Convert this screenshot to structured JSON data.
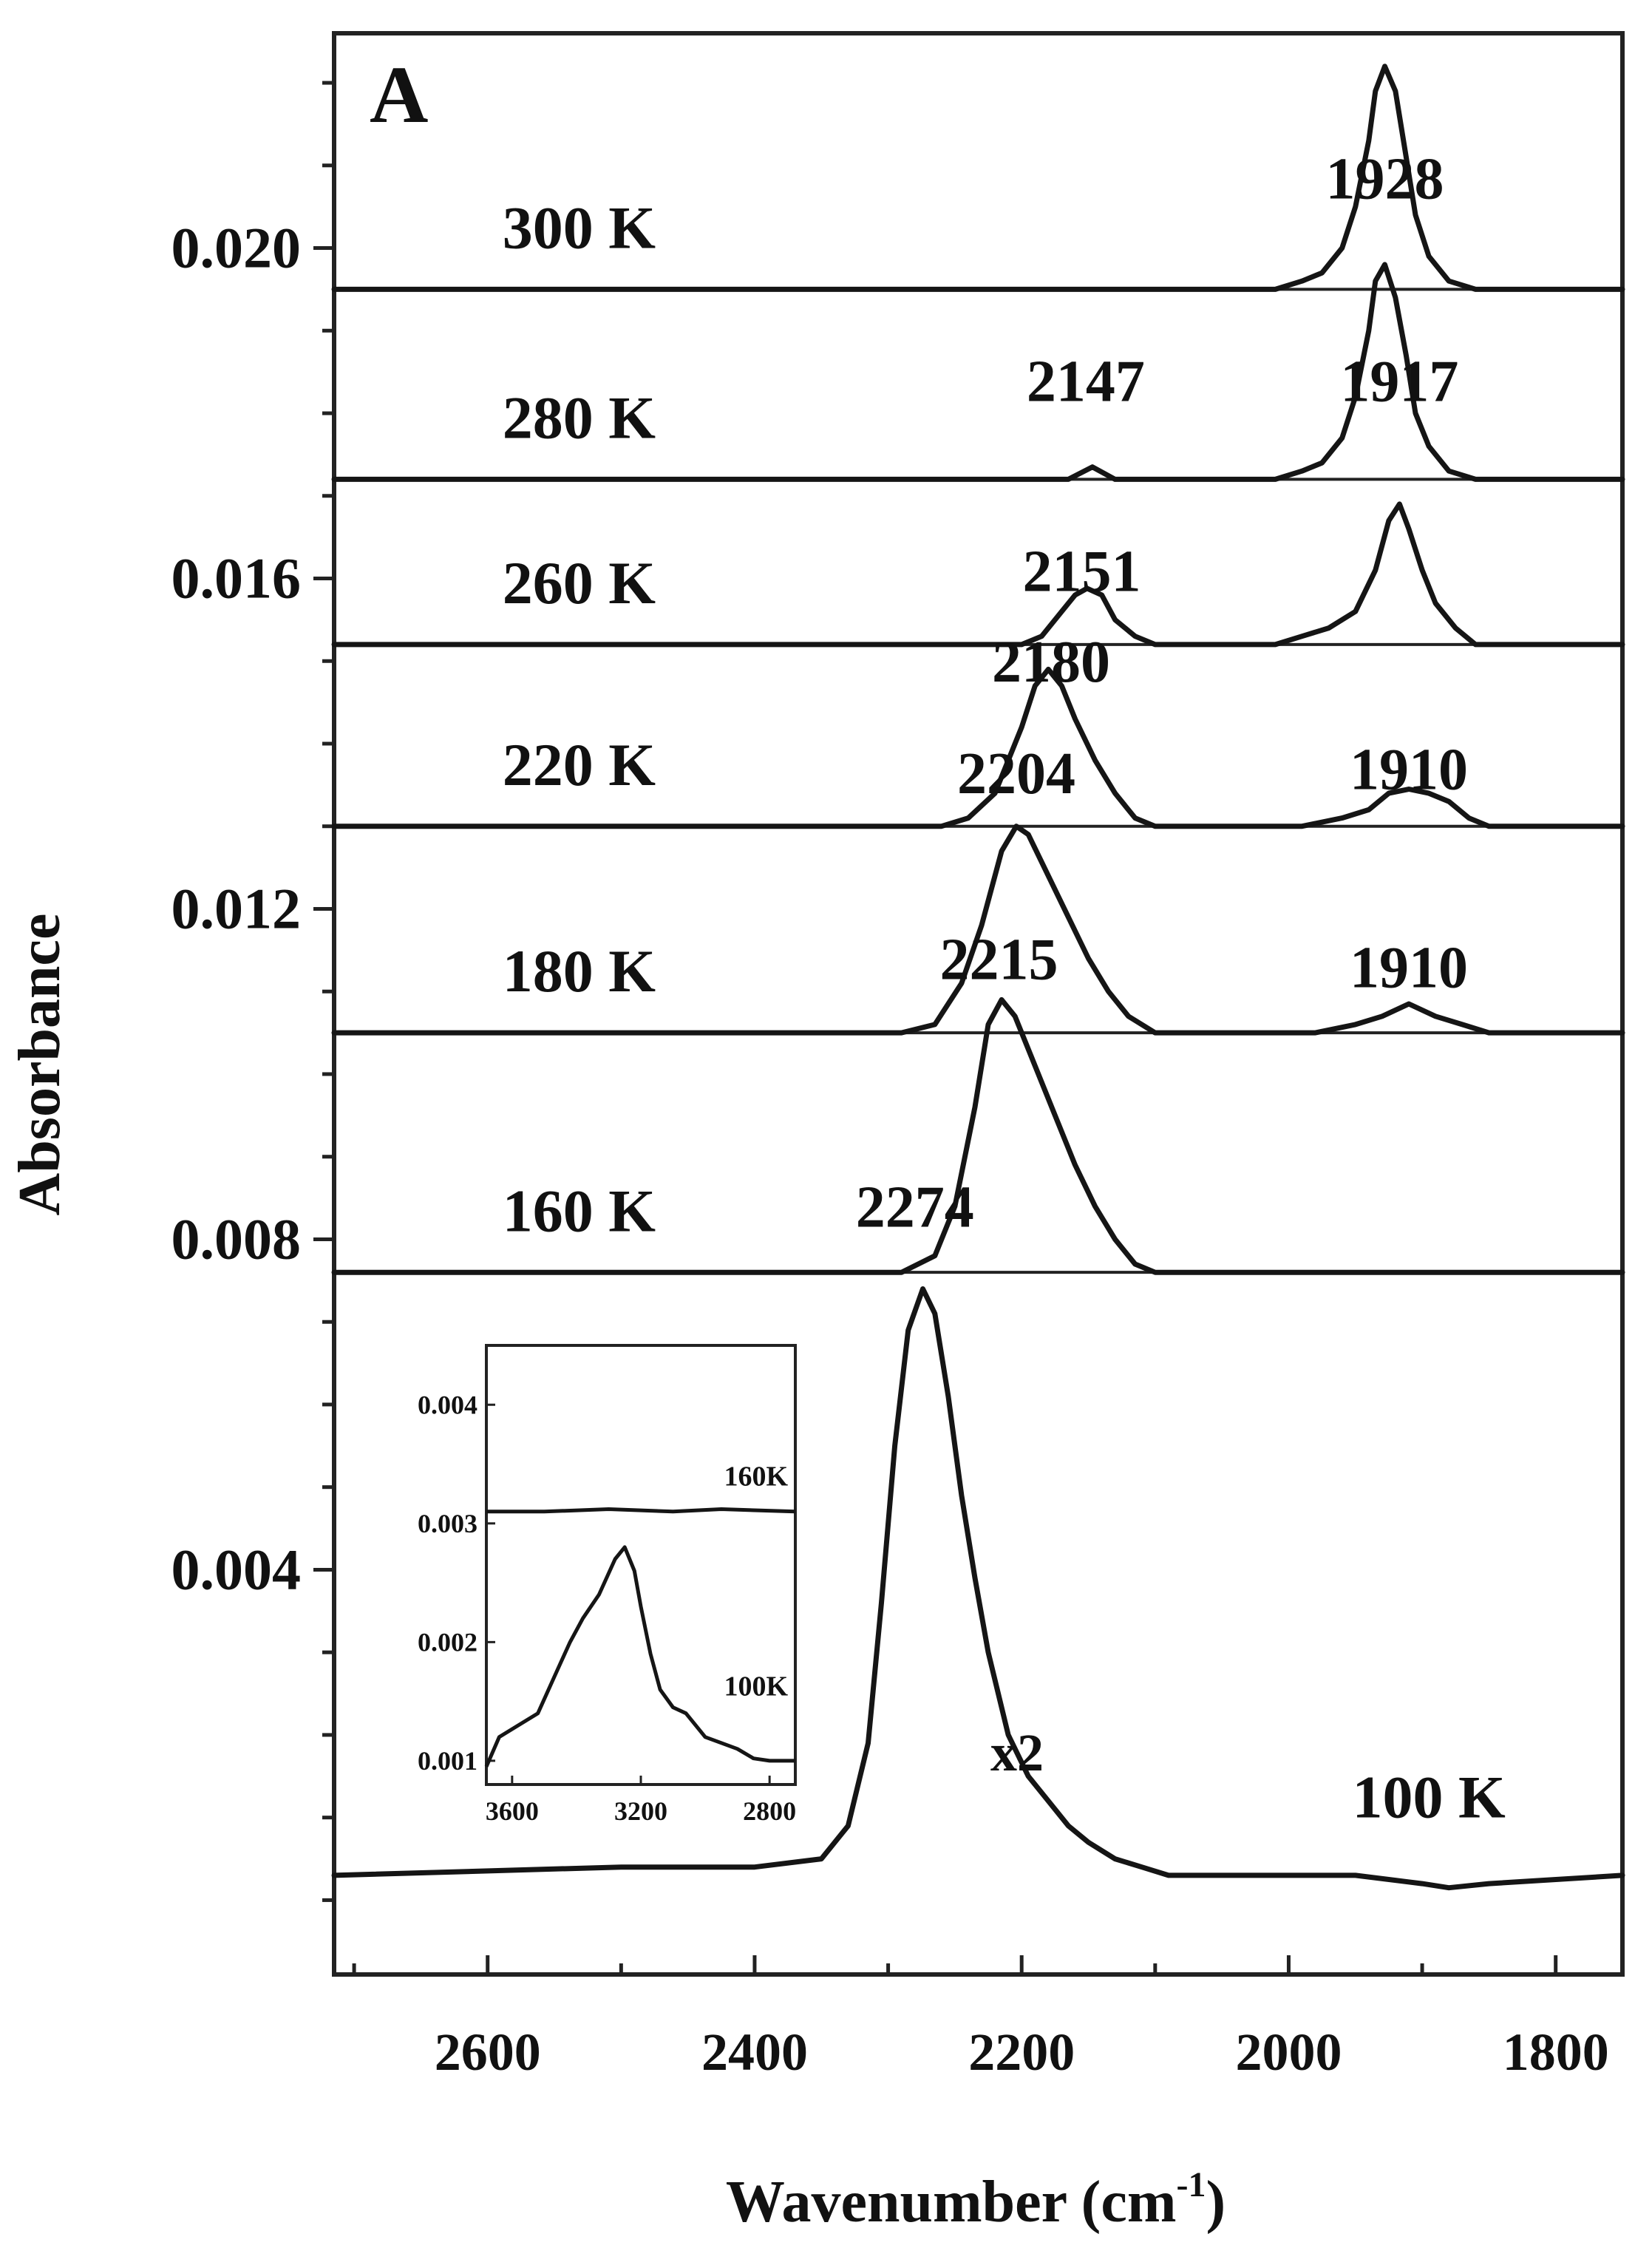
{
  "chart_data": {
    "type": "line",
    "panel_label": "A",
    "xlabel": "Wavenumber (cm-1)",
    "xlabel_main": "Wavenumber (cm",
    "xlabel_sup": "-1",
    "xlabel_close": ")",
    "ylabel": "Absorbance",
    "xlim": [
      2715,
      1750
    ],
    "ylim": [
      -0.0009,
      0.0226
    ],
    "x_reversed": true,
    "x_ticks": [
      2600,
      2400,
      2200,
      2000,
      1800
    ],
    "y_ticks": [
      0.004,
      0.008,
      0.012,
      0.016,
      0.02
    ],
    "y_tick_labels": [
      "0.004",
      "0.008",
      "0.012",
      "0.016",
      "0.020"
    ],
    "grid": false,
    "legend": "none",
    "series": [
      {
        "name": "300 K",
        "offset": 0.0195,
        "x": [
          2715,
          2400,
          2100,
          2010,
          1990,
          1975,
          1960,
          1950,
          1940,
          1935,
          1928,
          1920,
          1912,
          1905,
          1895,
          1880,
          1860,
          1750
        ],
        "y": [
          0,
          0,
          0,
          0,
          0.0001,
          0.0002,
          0.0005,
          0.001,
          0.0018,
          0.0024,
          0.0027,
          0.0024,
          0.0016,
          0.0009,
          0.0004,
          0.0001,
          0,
          0
        ]
      },
      {
        "name": "280 K",
        "offset": 0.0172,
        "x": [
          2715,
          2190,
          2165,
          2147,
          2130,
          2110,
          2010,
          1990,
          1975,
          1960,
          1950,
          1940,
          1935,
          1928,
          1920,
          1912,
          1905,
          1895,
          1880,
          1860,
          1750
        ],
        "y": [
          0,
          0,
          0,
          0.00015,
          0,
          0,
          0,
          0.0001,
          0.0002,
          0.0005,
          0.001,
          0.0018,
          0.0024,
          0.0026,
          0.0022,
          0.0015,
          0.0008,
          0.0004,
          0.0001,
          0,
          0
        ]
      },
      {
        "name": "260 K",
        "offset": 0.0152,
        "x": [
          2715,
          2200,
          2185,
          2170,
          2160,
          2151,
          2140,
          2130,
          2115,
          2100,
          2010,
          1990,
          1970,
          1950,
          1935,
          1925,
          1917,
          1910,
          1900,
          1890,
          1875,
          1860,
          1750
        ],
        "y": [
          0,
          0,
          0.0001,
          0.0004,
          0.0006,
          0.00068,
          0.0006,
          0.0003,
          0.0001,
          0,
          0,
          0.0001,
          0.0002,
          0.0004,
          0.0009,
          0.0015,
          0.0017,
          0.0014,
          0.0009,
          0.0005,
          0.0002,
          0,
          0
        ]
      },
      {
        "name": "220 K",
        "offset": 0.013,
        "x": [
          2715,
          2260,
          2240,
          2220,
          2200,
          2190,
          2180,
          2170,
          2160,
          2145,
          2130,
          2115,
          2100,
          1990,
          1960,
          1940,
          1925,
          1910,
          1895,
          1880,
          1865,
          1850,
          1750
        ],
        "y": [
          0,
          0,
          0.0001,
          0.0004,
          0.0012,
          0.0017,
          0.0019,
          0.0017,
          0.0013,
          0.0008,
          0.0004,
          0.0001,
          0,
          0,
          0.0001,
          0.0002,
          0.0004,
          0.00045,
          0.0004,
          0.0003,
          0.0001,
          0,
          0
        ]
      },
      {
        "name": "180 K",
        "offset": 0.0105,
        "x": [
          2715,
          2290,
          2265,
          2245,
          2230,
          2215,
          2204,
          2195,
          2180,
          2165,
          2150,
          2135,
          2120,
          2100,
          1980,
          1950,
          1930,
          1910,
          1890,
          1870,
          1850,
          1750
        ],
        "y": [
          0,
          0,
          0.0001,
          0.0006,
          0.0013,
          0.0022,
          0.0025,
          0.0024,
          0.0019,
          0.0014,
          0.0009,
          0.0005,
          0.0002,
          0,
          0,
          0.0001,
          0.0002,
          0.00035,
          0.0002,
          0.0001,
          0,
          0
        ]
      },
      {
        "name": "160 K",
        "offset": 0.0076,
        "x": [
          2715,
          2290,
          2265,
          2250,
          2235,
          2225,
          2215,
          2205,
          2190,
          2175,
          2160,
          2145,
          2130,
          2115,
          2100,
          1750
        ],
        "y": [
          0,
          0,
          0.0002,
          0.0008,
          0.002,
          0.003,
          0.0033,
          0.0031,
          0.0025,
          0.0019,
          0.0013,
          0.0008,
          0.0004,
          0.0001,
          0,
          0
        ]
      },
      {
        "name": "100 K",
        "offset": 0.0003,
        "x": [
          2715,
          2500,
          2400,
          2350,
          2330,
          2315,
          2305,
          2295,
          2285,
          2274,
          2265,
          2255,
          2245,
          2235,
          2225,
          2210,
          2195,
          2180,
          2165,
          2150,
          2130,
          2110,
          2090,
          1950,
          1900,
          1880,
          1850,
          1750
        ],
        "y": [
          0,
          0.0001,
          0.0001,
          0.0002,
          0.0006,
          0.0016,
          0.0033,
          0.0052,
          0.0066,
          0.0071,
          0.0068,
          0.0058,
          0.0046,
          0.0036,
          0.0027,
          0.0017,
          0.0012,
          0.0009,
          0.0006,
          0.0004,
          0.0002,
          0.0001,
          0,
          0,
          -0.0001,
          -0.00015,
          -0.0001,
          0
        ]
      }
    ],
    "peak_labels": [
      "1928",
      "1928",
      "2147",
      "1917",
      "2151",
      "2180",
      "1910",
      "2204",
      "1910",
      "2215",
      "2274"
    ],
    "peaks": [
      {
        "text": "1928",
        "x": 1928,
        "y": 0.0235
      },
      {
        "text": "1928",
        "x": 1928,
        "y": 0.0206
      },
      {
        "text": "2147",
        "x": 2152,
        "y": 0.01815
      },
      {
        "text": "1917",
        "x": 1917,
        "y": 0.01815
      },
      {
        "text": "2151",
        "x": 2155,
        "y": 0.01585
      },
      {
        "text": "2180",
        "x": 2178,
        "y": 0.01475
      },
      {
        "text": "1910",
        "x": 1910,
        "y": 0.01345
      },
      {
        "text": "2204",
        "x": 2204,
        "y": 0.0134
      },
      {
        "text": "1910",
        "x": 1910,
        "y": 0.01105
      },
      {
        "text": "2215",
        "x": 2217,
        "y": 0.01115
      },
      {
        "text": "2274",
        "x": 2280,
        "y": 0.00815
      }
    ],
    "multiplier_note": "x2",
    "temperature_labels": [
      "300 K",
      "280 K",
      "260 K",
      "220 K",
      "180 K",
      "160 K",
      "100 K"
    ],
    "inset": {
      "type": "line",
      "xlim": [
        3680,
        2720
      ],
      "ylim": [
        0.0008,
        0.0045
      ],
      "x_reversed": true,
      "x_ticks": [
        3600,
        3200,
        2800
      ],
      "y_ticks": [
        0.001,
        0.002,
        0.003,
        0.004
      ],
      "y_tick_labels": [
        "0.001",
        "0.002",
        "0.003",
        "0.004"
      ],
      "series": [
        {
          "name": "160K",
          "x": [
            3680,
            3500,
            3300,
            3100,
            2950,
            2720
          ],
          "y": [
            0.0031,
            0.0031,
            0.00312,
            0.0031,
            0.00312,
            0.0031
          ]
        },
        {
          "name": "100K",
          "x": [
            3680,
            3640,
            3580,
            3520,
            3470,
            3420,
            3380,
            3330,
            3280,
            3250,
            3220,
            3200,
            3170,
            3140,
            3100,
            3060,
            3000,
            2950,
            2900,
            2850,
            2800,
            2720
          ],
          "y": [
            0.00095,
            0.0012,
            0.0013,
            0.0014,
            0.0017,
            0.002,
            0.0022,
            0.0024,
            0.0027,
            0.0028,
            0.0026,
            0.0023,
            0.0019,
            0.0016,
            0.00145,
            0.0014,
            0.0012,
            0.00115,
            0.0011,
            0.00102,
            0.001,
            0.001
          ]
        }
      ]
    }
  }
}
